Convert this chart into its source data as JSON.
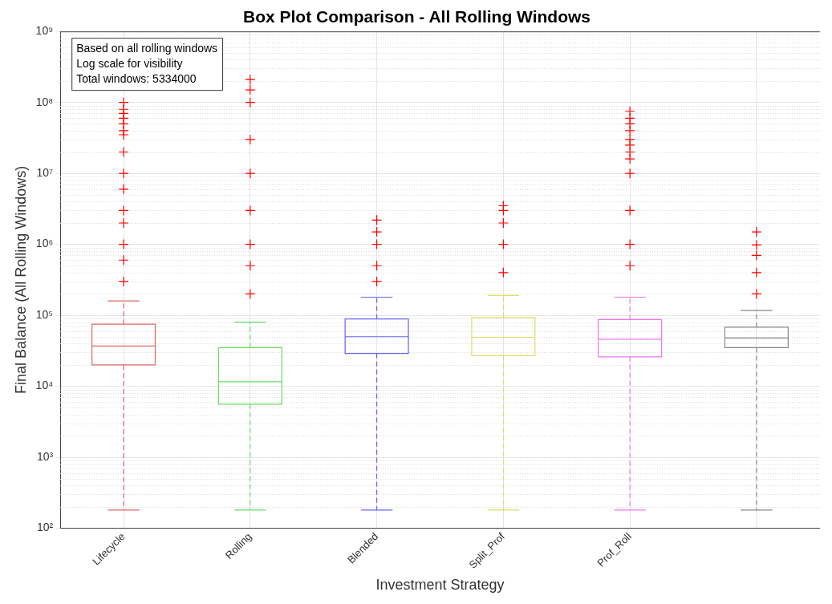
{
  "chart_data": {
    "type": "box",
    "title": "Box Plot Comparison - All Rolling Windows",
    "xlabel": "Investment Strategy",
    "ylabel": "Final Balance (All Rolling Windows)",
    "categories": [
      "Lifecycle",
      "Rolling",
      "Blended",
      "Split_Prof",
      "Prof_Roll",
      null
    ],
    "colors": [
      "#e06666",
      "#66dd66",
      "#6666ee",
      "#dddd66",
      "#ee77ee",
      "#888888"
    ],
    "boxes": [
      {
        "low": 180,
        "q1": 20000,
        "median": 37000,
        "q3": 75000,
        "high": 160000,
        "outliers": [
          300000,
          600000,
          1000000,
          2000000,
          3000000,
          6000000,
          10000000,
          20000000,
          35000000,
          40000000,
          50000000,
          60000000,
          70000000,
          80000000,
          100000000
        ]
      },
      {
        "low": 180,
        "q1": 5600,
        "median": 11600,
        "q3": 35000,
        "high": 80000,
        "outliers": [
          200000,
          500000,
          1000000,
          3000000,
          10000000,
          30000000,
          100000000,
          150000000,
          210000000
        ]
      },
      {
        "low": 180,
        "q1": 29000,
        "median": 50000,
        "q3": 89000,
        "high": 180000,
        "outliers": [
          300000,
          500000,
          1000000,
          1500000,
          2200000
        ]
      },
      {
        "low": 180,
        "q1": 27000,
        "median": 49000,
        "q3": 93000,
        "high": 190000,
        "outliers": [
          400000,
          1000000,
          2000000,
          3000000,
          3500000
        ]
      },
      {
        "low": 180,
        "q1": 26000,
        "median": 46000,
        "q3": 87000,
        "high": 180000,
        "outliers": [
          500000,
          1000000,
          3000000,
          10000000,
          16000000,
          20000000,
          25000000,
          30000000,
          40000000,
          50000000,
          60000000,
          75000000
        ]
      },
      {
        "low": 180,
        "q1": 35000,
        "median": 48000,
        "q3": 68000,
        "high": 117000,
        "outliers": [
          200000,
          400000,
          700000,
          980000,
          1500000
        ]
      }
    ],
    "log": true,
    "ylim": [
      100,
      1000000000
    ],
    "yticks": [
      {
        "value": 100,
        "label": "10²"
      },
      {
        "value": 1000,
        "label": "10³"
      },
      {
        "value": 10000,
        "label": "10⁴"
      },
      {
        "value": 100000,
        "label": "10⁵"
      },
      {
        "value": 1000000,
        "label": "10⁶"
      },
      {
        "value": 10000000,
        "label": "10⁷"
      },
      {
        "value": 100000000,
        "label": "10⁸"
      },
      {
        "value": 1000000000,
        "label": "10⁹"
      }
    ],
    "grid": true,
    "marker": "cross",
    "line_style": "dashed",
    "annotations": [
      "Based on all rolling windows",
      "Log scale for visibility",
      "Total windows: 5334000"
    ]
  }
}
